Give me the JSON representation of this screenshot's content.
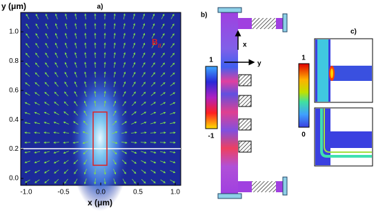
{
  "panel_a": {
    "label": "a)",
    "x_label": "x (μm)",
    "y_label": "y (μm)",
    "annotation": "B",
    "annotation_subscript": "//",
    "x_tick_labels": [
      "-1.0",
      "-0.5",
      "0.0",
      "0.5",
      "1.0"
    ],
    "y_tick_labels": [
      "0.0",
      "0.2",
      "0.4",
      "0.6",
      "0.8",
      "1.0"
    ]
  },
  "panel_b": {
    "label": "b)",
    "colorbar_max": "1",
    "colorbar_min": "-1",
    "axis_x": "x",
    "axis_y": "y"
  },
  "panel_c": {
    "label": "c)",
    "colorbar_max": "1",
    "colorbar_min": "0"
  }
}
